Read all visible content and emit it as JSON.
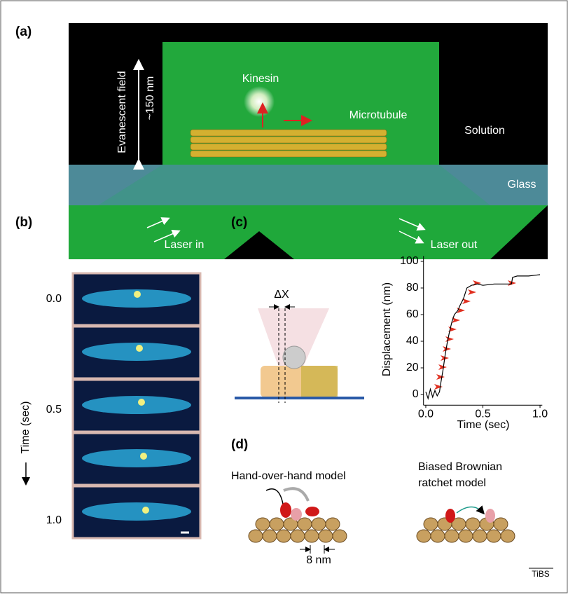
{
  "panels": {
    "a": {
      "label": "(a)",
      "kinesin": "Kinesin",
      "microtubule": "Microtubule",
      "solution": "Solution",
      "glass": "Glass",
      "laser_in": "Laser in",
      "laser_out": "Laser out",
      "evanescent_field": "Evanescent field",
      "depth": "~150 nm"
    },
    "b": {
      "label": "(b)",
      "axis_label": "Time (sec)",
      "time_labels": [
        "0.0",
        "0.5",
        "1.0"
      ]
    },
    "c": {
      "label": "(c)",
      "delta": "ΔX"
    },
    "d": {
      "label": "(d)",
      "hand_over_hand": "Hand-over-hand model",
      "ratchet": [
        "Biased Brownian",
        "ratchet model"
      ],
      "step": "8 nm"
    }
  },
  "chart_data": {
    "type": "line",
    "x_label": "Time (sec)",
    "y_label": "Displacement (nm)",
    "x": [
      0,
      0.02,
      0.04,
      0.06,
      0.08,
      0.1,
      0.12,
      0.13,
      0.15,
      0.17,
      0.19,
      0.21,
      0.23,
      0.25,
      0.28,
      0.3,
      0.33,
      0.36,
      0.4,
      0.45,
      0.5,
      0.6,
      0.7,
      0.75,
      0.76,
      0.8,
      0.9,
      1.0
    ],
    "series": [
      {
        "color": "#000000",
        "values": [
          2,
          -3,
          4,
          -2,
          3,
          -1,
          2,
          8,
          18,
          30,
          40,
          48,
          55,
          60,
          63,
          67,
          72,
          80,
          82,
          83,
          82,
          83,
          83,
          83,
          88,
          89,
          89,
          90
        ]
      }
    ],
    "xlim": [
      -0.02,
      1.02
    ],
    "ylim": [
      -8,
      104
    ],
    "xticks": [
      {
        "value": 0,
        "label": "0.0"
      },
      {
        "value": 0.5,
        "label": "0.5"
      },
      {
        "value": 1,
        "label": "1.0"
      }
    ],
    "yticks": [
      0,
      20,
      40,
      60,
      80,
      100
    ]
  },
  "footer": "TiBS"
}
